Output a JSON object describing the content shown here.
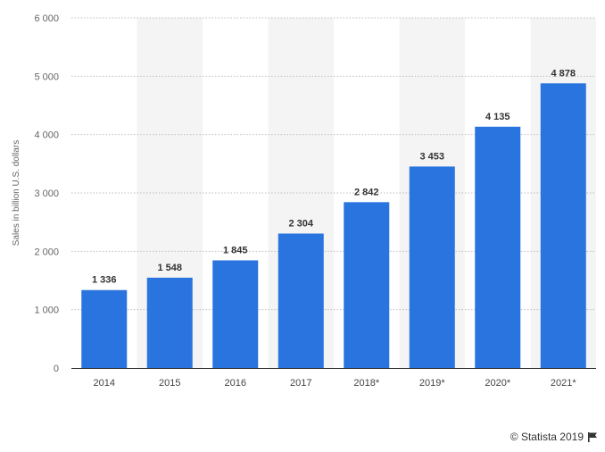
{
  "chart_data": {
    "type": "bar",
    "categories": [
      "2014",
      "2015",
      "2016",
      "2017",
      "2018*",
      "2019*",
      "2020*",
      "2021*"
    ],
    "values": [
      1336,
      1548,
      1845,
      2304,
      2842,
      3453,
      4135,
      4878
    ],
    "value_labels": [
      "1 336",
      "1 548",
      "1 845",
      "2 304",
      "2 842",
      "3 453",
      "4 135",
      "4 878"
    ],
    "ylabel": "Sales in billion U.S. dollars",
    "ylim": [
      0,
      6000
    ],
    "yticks": [
      0,
      1000,
      2000,
      3000,
      4000,
      5000,
      6000
    ],
    "ytick_labels": [
      "0",
      "1 000",
      "2 000",
      "3 000",
      "4 000",
      "5 000",
      "6 000"
    ],
    "grid": true,
    "bar_color": "#2a74df",
    "alt_band_color": "#f4f4f4"
  },
  "credit": {
    "text": "© Statista 2019",
    "icon": "flag-icon"
  }
}
